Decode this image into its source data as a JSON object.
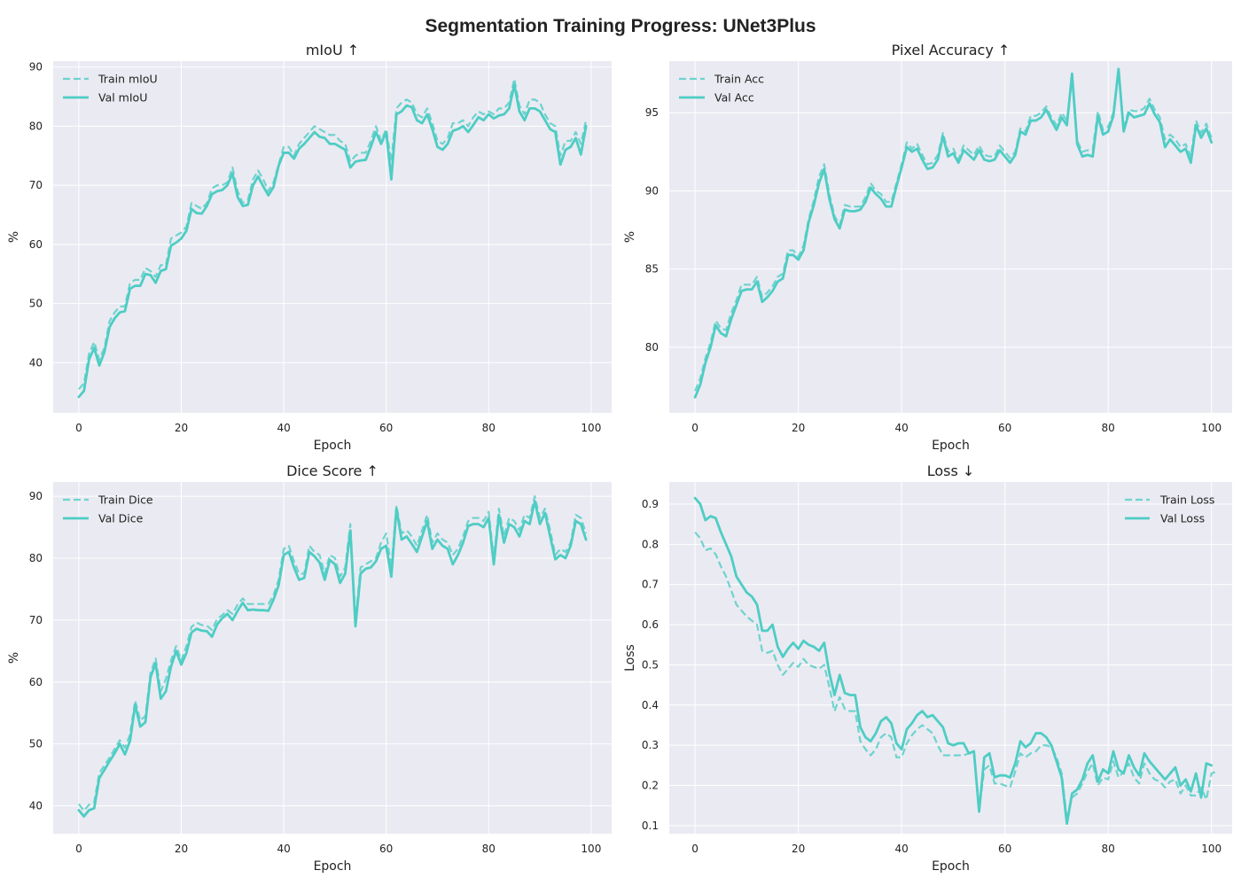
{
  "figure": {
    "title": "Segmentation Training Progress: UNet3Plus"
  },
  "colors": {
    "line": "#4ecdc4",
    "plot_bg": "#eaeaf2",
    "grid": "#ffffff",
    "text": "#222222"
  },
  "chart_data": [
    {
      "type": "line",
      "title": "mIoU ↑",
      "xlabel": "Epoch",
      "ylabel": "%",
      "xlim": [
        -5,
        104
      ],
      "ylim": [
        31.5,
        91
      ],
      "xticks": [
        0,
        20,
        40,
        60,
        80,
        100
      ],
      "yticks": [
        40,
        50,
        60,
        70,
        80,
        90
      ],
      "grid": true,
      "legend": "top-left",
      "x_step": 1,
      "series": [
        {
          "name": "Train mIoU",
          "style": "dashed",
          "values": [
            35.5,
            36.5,
            41.5,
            43.5,
            40.5,
            42.5,
            47.0,
            48.5,
            49.5,
            49.5,
            53.5,
            54.0,
            54.0,
            56.0,
            55.5,
            54.5,
            56.5,
            56.5,
            61.0,
            61.5,
            62.0,
            63.0,
            67.0,
            66.5,
            66.0,
            67.0,
            69.5,
            70.0,
            70.0,
            70.5,
            73.0,
            69.0,
            67.0,
            67.5,
            71.0,
            72.5,
            71.0,
            69.0,
            70.5,
            73.5,
            76.5,
            76.5,
            75.0,
            77.0,
            78.0,
            79.0,
            80.0,
            79.5,
            79.0,
            78.5,
            78.5,
            77.5,
            77.0,
            74.0,
            75.0,
            75.5,
            75.5,
            77.5,
            80.0,
            77.5,
            79.5,
            74.0,
            83.0,
            84.0,
            84.5,
            84.0,
            82.0,
            81.5,
            83.0,
            80.5,
            77.5,
            77.0,
            78.0,
            80.5,
            80.5,
            81.0,
            80.0,
            81.5,
            82.5,
            82.0,
            82.5,
            82.0,
            83.0,
            83.0,
            84.0,
            88.0,
            83.5,
            82.0,
            84.5,
            84.5,
            84.0,
            82.0,
            80.5,
            80.0,
            75.0,
            77.5,
            77.5,
            79.0,
            77.0,
            81.0
          ]
        },
        {
          "name": "Val mIoU",
          "style": "solid",
          "values": [
            34.2,
            35.2,
            40.5,
            42.5,
            39.5,
            41.8,
            46.0,
            47.5,
            48.5,
            48.7,
            52.5,
            53.0,
            53.0,
            55.0,
            54.8,
            53.5,
            55.5,
            55.8,
            59.8,
            60.3,
            61.0,
            62.3,
            66.0,
            65.3,
            65.2,
            66.5,
            68.5,
            69.0,
            69.2,
            70.0,
            72.0,
            68.0,
            66.5,
            66.7,
            70.0,
            71.5,
            69.8,
            68.3,
            69.7,
            73.3,
            75.5,
            75.5,
            74.5,
            76.2,
            77.0,
            78.0,
            79.0,
            78.2,
            78.0,
            77.0,
            77.0,
            76.5,
            76.0,
            73.0,
            74.0,
            74.2,
            74.3,
            76.5,
            79.0,
            77.0,
            79.0,
            71.0,
            82.0,
            82.5,
            83.5,
            83.2,
            81.0,
            80.5,
            82.0,
            79.5,
            76.5,
            76.0,
            77.0,
            79.2,
            79.5,
            80.0,
            79.0,
            80.2,
            81.5,
            81.0,
            82.0,
            81.3,
            81.8,
            82.0,
            83.0,
            87.0,
            82.5,
            81.0,
            83.0,
            83.0,
            82.5,
            81.0,
            79.5,
            79.0,
            73.5,
            76.0,
            76.5,
            78.0,
            75.2,
            80.0
          ]
        }
      ]
    },
    {
      "type": "line",
      "title": "Pixel Accuracy ↑",
      "xlabel": "Epoch",
      "ylabel": "%",
      "xlim": [
        -5,
        104
      ],
      "ylim": [
        75.8,
        98.3
      ],
      "xticks": [
        0,
        20,
        40,
        60,
        80,
        100
      ],
      "yticks": [
        80,
        85,
        90,
        95
      ],
      "grid": true,
      "legend": "top-left",
      "x_step": 1,
      "series": [
        {
          "name": "Train Acc",
          "style": "dashed",
          "values": [
            77.2,
            78.0,
            79.3,
            80.3,
            81.7,
            81.2,
            81.1,
            82.2,
            83.0,
            84.0,
            84.0,
            84.0,
            84.5,
            83.2,
            83.5,
            83.9,
            84.5,
            84.7,
            86.2,
            86.2,
            85.8,
            86.5,
            88.2,
            89.4,
            90.9,
            91.7,
            89.8,
            88.4,
            87.8,
            89.1,
            89.0,
            89.0,
            89.0,
            89.6,
            90.5,
            90.0,
            89.8,
            89.3,
            89.3,
            90.5,
            91.7,
            93.1,
            92.7,
            93.0,
            92.3,
            91.7,
            91.8,
            92.3,
            93.7,
            92.5,
            92.7,
            92.0,
            92.9,
            92.6,
            92.3,
            92.9,
            92.3,
            92.2,
            92.2,
            92.9,
            92.5,
            92.1,
            92.5,
            94.0,
            93.8,
            94.8,
            94.8,
            95.0,
            95.4,
            94.7,
            94.2,
            95.0,
            94.5,
            97.3,
            93.2,
            92.5,
            92.6,
            92.6,
            95.1,
            93.9,
            94.1,
            95.0,
            97.7,
            94.0,
            95.2,
            95.1,
            95.1,
            95.3,
            95.9,
            95.2,
            94.7,
            93.3,
            93.6,
            93.3,
            92.8,
            93.0,
            92.2,
            94.5,
            93.7,
            94.3,
            93.4
          ]
        },
        {
          "name": "Val Acc",
          "style": "solid",
          "values": [
            76.8,
            77.6,
            79.0,
            80.0,
            81.4,
            80.9,
            80.7,
            81.8,
            82.7,
            83.6,
            83.7,
            83.7,
            84.2,
            82.9,
            83.2,
            83.6,
            84.2,
            84.4,
            85.9,
            85.9,
            85.6,
            86.2,
            88.0,
            89.1,
            90.5,
            91.4,
            89.5,
            88.2,
            87.6,
            88.8,
            88.7,
            88.7,
            88.8,
            89.3,
            90.2,
            89.8,
            89.5,
            89.0,
            89.0,
            90.3,
            91.5,
            92.8,
            92.5,
            92.7,
            92.0,
            91.4,
            91.5,
            92.0,
            93.5,
            92.2,
            92.4,
            91.8,
            92.6,
            92.3,
            92.0,
            92.6,
            92.0,
            91.9,
            92.0,
            92.6,
            92.2,
            91.8,
            92.3,
            93.8,
            93.6,
            94.5,
            94.5,
            94.7,
            95.2,
            94.5,
            93.9,
            94.7,
            94.2,
            97.5,
            93.0,
            92.2,
            92.3,
            92.2,
            94.8,
            93.6,
            93.8,
            94.8,
            97.8,
            93.8,
            95.0,
            94.7,
            94.8,
            94.9,
            95.6,
            94.9,
            94.4,
            92.8,
            93.3,
            92.9,
            92.5,
            92.7,
            91.8,
            94.2,
            93.4,
            94.0,
            93.1
          ]
        }
      ]
    },
    {
      "type": "line",
      "title": "Dice Score ↑",
      "xlabel": "Epoch",
      "ylabel": "%",
      "xlim": [
        -5,
        104
      ],
      "ylim": [
        35.5,
        92.3
      ],
      "xticks": [
        0,
        20,
        40,
        60,
        80,
        100
      ],
      "yticks": [
        40,
        50,
        60,
        70,
        80,
        90
      ],
      "grid": true,
      "legend": "top-left",
      "x_step": 1,
      "series": [
        {
          "name": "Train Dice",
          "style": "dashed",
          "values": [
            40.3,
            39.2,
            40.2,
            40.6,
            45.3,
            46.5,
            47.8,
            49.2,
            50.6,
            49.4,
            51.5,
            57.0,
            53.8,
            54.5,
            61.5,
            63.8,
            58.5,
            60.5,
            63.5,
            65.8,
            63.5,
            65.8,
            68.9,
            69.6,
            69.2,
            69.1,
            68.4,
            70.2,
            70.8,
            71.6,
            71.0,
            72.5,
            73.5,
            72.6,
            72.6,
            72.6,
            72.6,
            72.6,
            74.0,
            76.5,
            81.5,
            82.0,
            79.5,
            77.5,
            77.5,
            82.0,
            81.0,
            80.5,
            77.5,
            80.5,
            80.0,
            77.0,
            78.5,
            85.5,
            70.0,
            78.5,
            79.0,
            79.5,
            80.0,
            82.5,
            84.0,
            78.5,
            88.5,
            84.0,
            84.5,
            83.5,
            82.0,
            84.5,
            87.0,
            82.5,
            84.0,
            83.0,
            82.5,
            80.5,
            81.5,
            83.5,
            86.0,
            86.5,
            86.5,
            86.0,
            87.5,
            80.0,
            88.0,
            83.5,
            86.5,
            86.0,
            84.5,
            87.0,
            86.5,
            90.0,
            86.5,
            88.0,
            84.5,
            80.5,
            81.5,
            81.0,
            82.5,
            87.0,
            86.5,
            84.0
          ]
        },
        {
          "name": "Val Dice",
          "style": "solid",
          "values": [
            39.3,
            38.3,
            39.3,
            39.6,
            44.5,
            45.8,
            47.2,
            48.5,
            50.0,
            48.3,
            50.5,
            56.3,
            52.8,
            53.5,
            60.8,
            63.0,
            57.3,
            58.5,
            62.5,
            65.0,
            62.8,
            64.7,
            68.0,
            68.6,
            68.3,
            68.2,
            67.3,
            69.3,
            70.3,
            71.0,
            70.0,
            71.5,
            72.8,
            71.6,
            71.7,
            71.6,
            71.6,
            71.5,
            73.3,
            75.6,
            80.5,
            81.0,
            78.5,
            76.5,
            76.8,
            81.0,
            80.3,
            79.3,
            76.5,
            79.7,
            79.0,
            76.0,
            77.5,
            84.5,
            69.0,
            77.5,
            78.3,
            78.5,
            79.5,
            81.5,
            82.0,
            77.0,
            88.0,
            83.0,
            83.5,
            82.3,
            81.0,
            83.5,
            86.0,
            81.5,
            83.0,
            82.0,
            81.5,
            79.0,
            80.5,
            82.5,
            85.2,
            85.5,
            85.5,
            85.0,
            86.5,
            79.0,
            87.0,
            82.5,
            85.5,
            85.0,
            83.5,
            86.0,
            85.5,
            89.2,
            85.5,
            87.3,
            83.5,
            79.8,
            80.5,
            80.0,
            82.0,
            86.0,
            85.5,
            83.0
          ]
        }
      ]
    },
    {
      "type": "line",
      "title": "Loss ↓",
      "xlabel": "Epoch",
      "ylabel": "Loss",
      "xlim": [
        -5,
        104
      ],
      "ylim": [
        0.08,
        0.955
      ],
      "xticks": [
        0,
        20,
        40,
        60,
        80,
        100
      ],
      "yticks": [
        0.1,
        0.2,
        0.3,
        0.4,
        0.5,
        0.6,
        0.7,
        0.8,
        0.9
      ],
      "grid": true,
      "legend": "top-right",
      "x_step": 1,
      "series": [
        {
          "name": "Train Loss",
          "style": "dashed",
          "values": [
            0.83,
            0.815,
            0.785,
            0.79,
            0.775,
            0.745,
            0.72,
            0.685,
            0.65,
            0.635,
            0.62,
            0.61,
            0.6,
            0.535,
            0.53,
            0.535,
            0.5,
            0.475,
            0.49,
            0.505,
            0.495,
            0.515,
            0.5,
            0.495,
            0.49,
            0.5,
            0.445,
            0.385,
            0.42,
            0.39,
            0.385,
            0.385,
            0.31,
            0.29,
            0.275,
            0.29,
            0.32,
            0.33,
            0.32,
            0.27,
            0.27,
            0.305,
            0.325,
            0.34,
            0.35,
            0.34,
            0.33,
            0.3,
            0.275,
            0.275,
            0.275,
            0.275,
            0.275,
            0.28,
            0.28,
            0.14,
            0.24,
            0.25,
            0.205,
            0.205,
            0.2,
            0.195,
            0.235,
            0.28,
            0.27,
            0.28,
            0.285,
            0.3,
            0.3,
            0.295,
            0.27,
            0.23,
            0.115,
            0.17,
            0.18,
            0.205,
            0.235,
            0.255,
            0.2,
            0.22,
            0.215,
            0.26,
            0.22,
            0.235,
            0.255,
            0.22,
            0.205,
            0.255,
            0.23,
            0.215,
            0.21,
            0.195,
            0.21,
            0.215,
            0.18,
            0.2,
            0.175,
            0.175,
            0.195,
            0.165,
            0.23,
            0.235
          ]
        },
        {
          "name": "Val Loss",
          "style": "solid",
          "values": [
            0.915,
            0.9,
            0.86,
            0.87,
            0.865,
            0.83,
            0.8,
            0.77,
            0.72,
            0.7,
            0.68,
            0.67,
            0.65,
            0.585,
            0.585,
            0.6,
            0.545,
            0.52,
            0.54,
            0.555,
            0.54,
            0.56,
            0.55,
            0.545,
            0.535,
            0.555,
            0.48,
            0.425,
            0.475,
            0.43,
            0.425,
            0.425,
            0.345,
            0.32,
            0.31,
            0.33,
            0.36,
            0.37,
            0.355,
            0.305,
            0.29,
            0.34,
            0.355,
            0.375,
            0.385,
            0.37,
            0.375,
            0.36,
            0.345,
            0.305,
            0.3,
            0.305,
            0.305,
            0.28,
            0.285,
            0.135,
            0.27,
            0.28,
            0.22,
            0.225,
            0.225,
            0.22,
            0.255,
            0.31,
            0.295,
            0.305,
            0.33,
            0.33,
            0.32,
            0.3,
            0.26,
            0.22,
            0.105,
            0.18,
            0.19,
            0.215,
            0.255,
            0.275,
            0.21,
            0.24,
            0.23,
            0.285,
            0.24,
            0.23,
            0.275,
            0.245,
            0.225,
            0.28,
            0.26,
            0.245,
            0.23,
            0.215,
            0.23,
            0.245,
            0.2,
            0.215,
            0.185,
            0.23,
            0.17,
            0.255,
            0.25
          ]
        }
      ]
    }
  ]
}
